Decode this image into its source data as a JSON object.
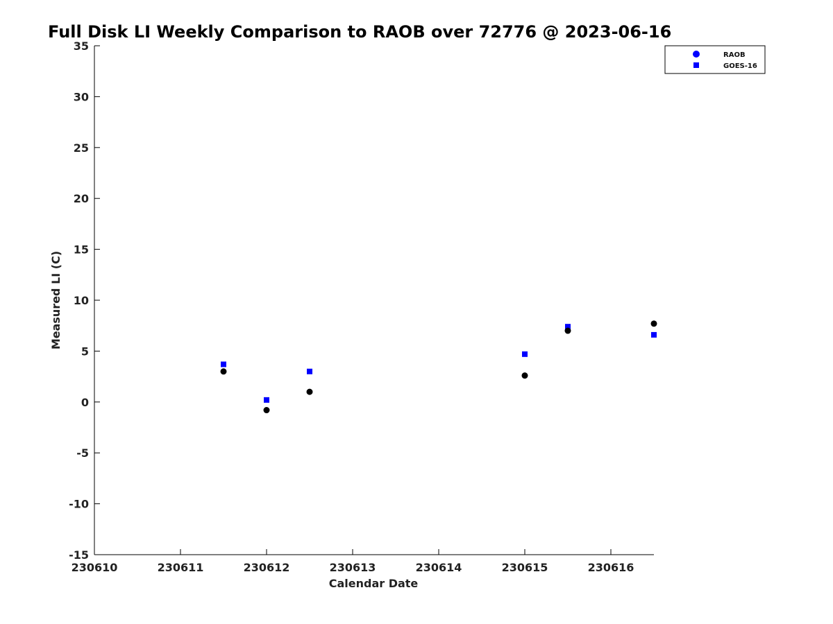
{
  "chart_data": {
    "type": "scatter",
    "title": "Full Disk LI Weekly Comparison to RAOB over 72776 @ 2023-06-16",
    "xlabel": "Calendar Date",
    "ylabel": "Measured LI (C)",
    "xlim": [
      "230610",
      "230616.5"
    ],
    "ylim": [
      -15,
      35
    ],
    "x_ticks": [
      "230610",
      "230611",
      "230612",
      "230613",
      "230614",
      "230615",
      "230616"
    ],
    "y_ticks": [
      "35",
      "30",
      "25",
      "20",
      "15",
      "10",
      "5",
      "0",
      "-5",
      "-10",
      "-15"
    ],
    "grid": false,
    "legend_position": "top-right",
    "series": [
      {
        "name": "RAOB",
        "marker": "circle",
        "legend_color": "#0000ff",
        "point_color": "#000000",
        "points": [
          {
            "x": "230611.5",
            "y": 3.0
          },
          {
            "x": "230612",
            "y": -0.8
          },
          {
            "x": "230612.5",
            "y": 1.0
          },
          {
            "x": "230615",
            "y": 2.6
          },
          {
            "x": "230615.5",
            "y": 7.0
          },
          {
            "x": "230616.5",
            "y": 7.7
          }
        ]
      },
      {
        "name": "GOES-16",
        "marker": "square",
        "legend_color": "#0000ff",
        "point_color": "#0000ff",
        "points": [
          {
            "x": "230611.5",
            "y": 3.7
          },
          {
            "x": "230612",
            "y": 0.2
          },
          {
            "x": "230612.5",
            "y": 3.0
          },
          {
            "x": "230615",
            "y": 4.7
          },
          {
            "x": "230615.5",
            "y": 7.4
          },
          {
            "x": "230616.5",
            "y": 6.6
          }
        ]
      }
    ]
  }
}
